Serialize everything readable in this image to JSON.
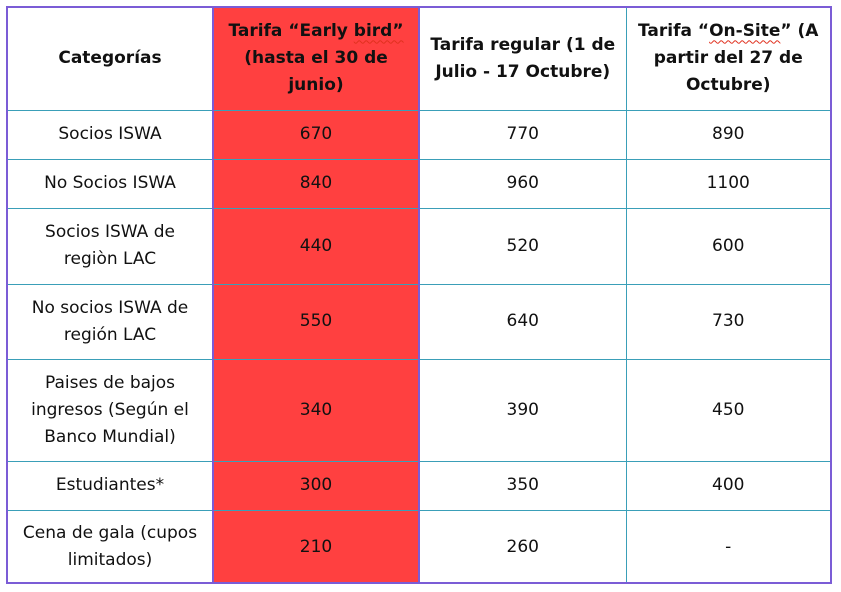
{
  "headers": {
    "category": "Categorías",
    "early": {
      "prefix": "Tarifa “Early ",
      "squiggle": "bird”",
      "suffix": " (hasta el 30 de junio)"
    },
    "regular": "Tarifa regular (1 de Julio - 17 Octubre)",
    "onsite": {
      "prefix": "Tarifa “",
      "squiggle": "On-Site",
      "suffix": "” (A partir del 27 de Octubre)"
    }
  },
  "rows": [
    {
      "category": "Socios ISWA",
      "early": "670",
      "regular": "770",
      "onsite": "890"
    },
    {
      "category": "No Socios ISWA",
      "early": "840",
      "regular": "960",
      "onsite": "1100"
    },
    {
      "category": "Socios ISWA de regiòn LAC",
      "early": "440",
      "regular": "520",
      "onsite": "600"
    },
    {
      "category": "No socios ISWA de región LAC",
      "early": "550",
      "regular": "640",
      "onsite": "730"
    },
    {
      "category": "Paises de bajos ingresos (Según el Banco Mundial)",
      "early": "340",
      "regular": "390",
      "onsite": "450"
    },
    {
      "category": "Estudiantes*",
      "early": "300",
      "regular": "350",
      "onsite": "400"
    },
    {
      "category": "Cena de gala (cupos limitados)",
      "early": "210",
      "regular": "260",
      "onsite": "-"
    }
  ],
  "colors": {
    "early_column": "#ff4040",
    "border_outer": "#7b5cd6",
    "border_inner": "#3a9fb8",
    "spell_underline": "#e0301e"
  }
}
